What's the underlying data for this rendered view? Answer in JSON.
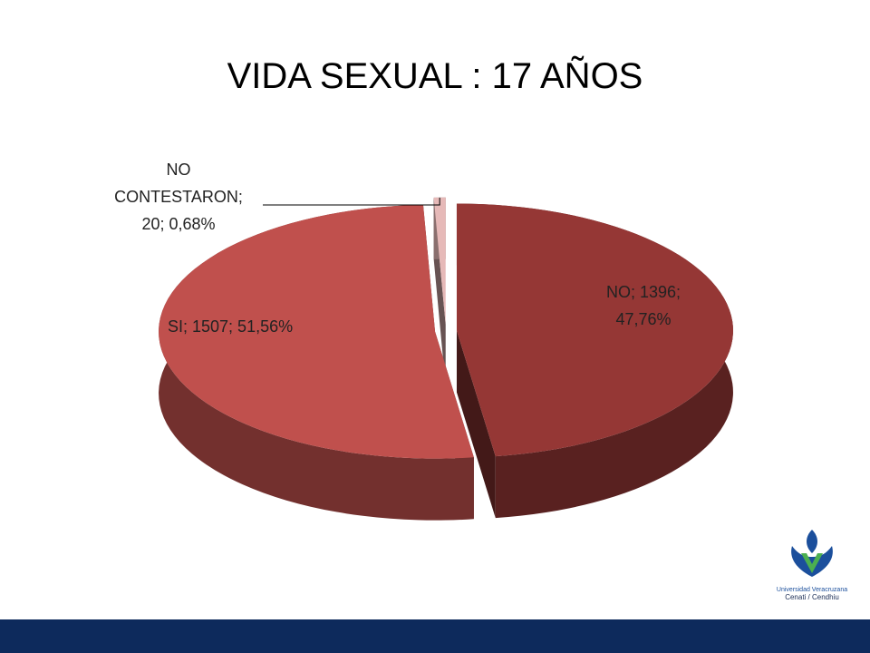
{
  "chart_data": {
    "type": "pie3d",
    "title": "VIDA SEXUAL : 17 AÑOS",
    "values": [
      1396,
      1507,
      20
    ],
    "value_labels": [
      "NO; 1396; 47,76%",
      "SI; 1507; 51,56%",
      "NO CONTESTARON; 20; 0,68%"
    ],
    "colors": [
      "#953735",
      "#c0504d",
      "#e6b9b8"
    ]
  },
  "logo": {
    "lines": [
      "Universidad Veracruzana",
      "Cenati / Cendhiu"
    ]
  }
}
